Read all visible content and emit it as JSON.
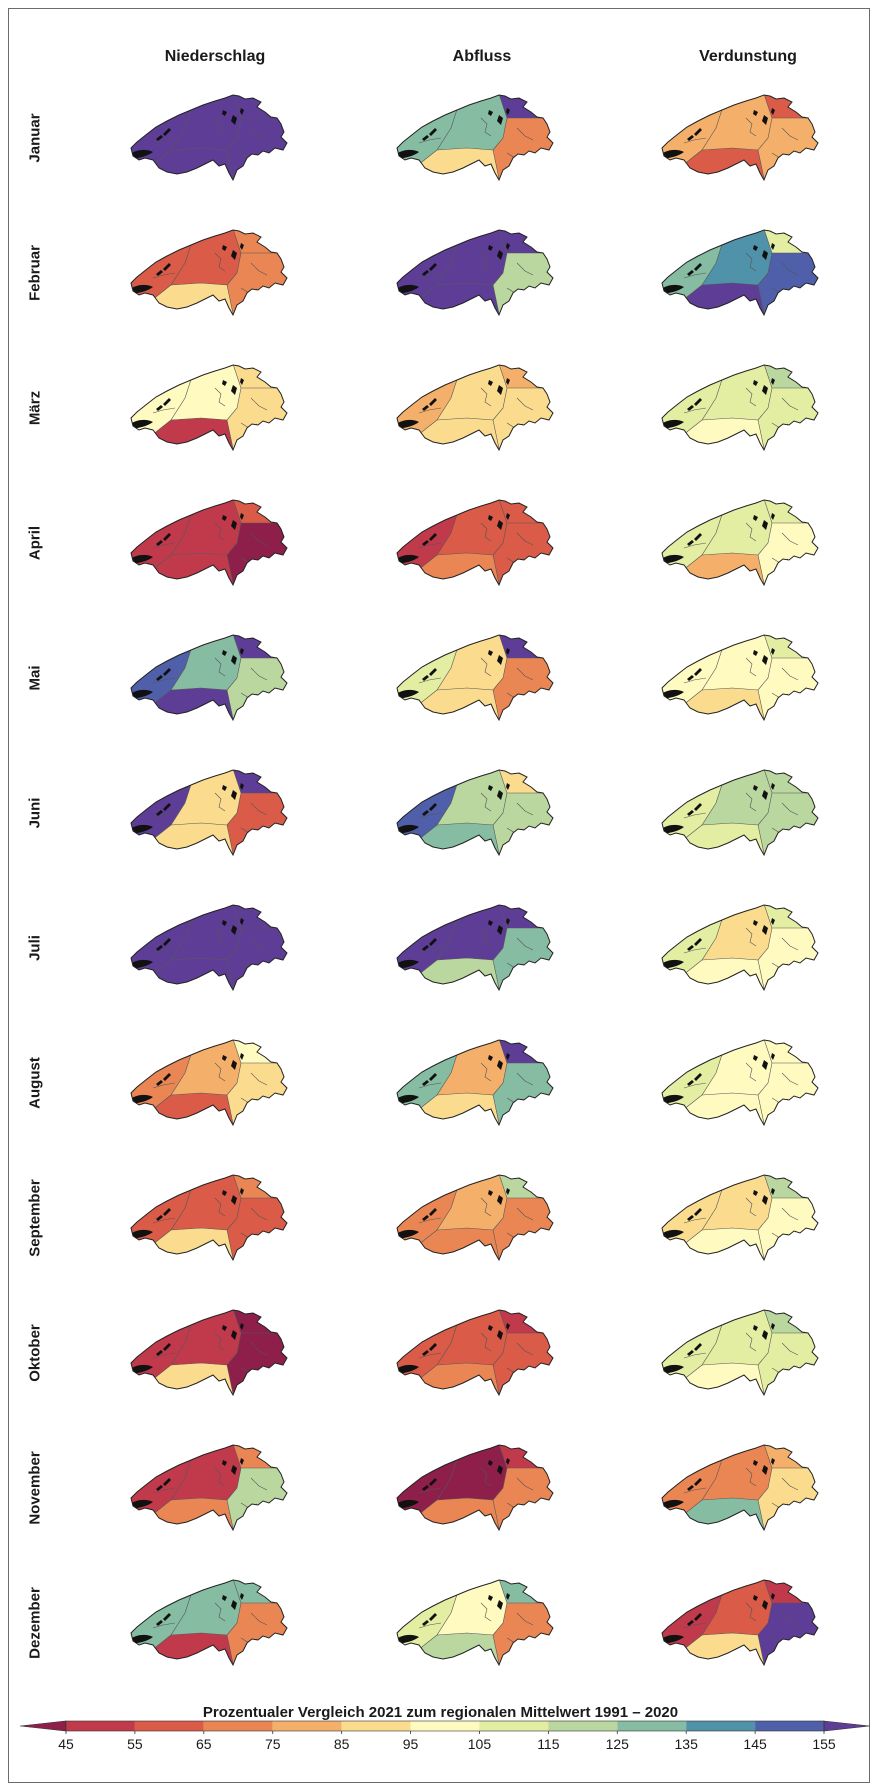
{
  "columns": [
    "Niederschlag",
    "Abfluss",
    "Verdunstung"
  ],
  "months": [
    "Januar",
    "Februar",
    "März",
    "April",
    "Mai",
    "Juni",
    "Juli",
    "August",
    "September",
    "Oktober",
    "November",
    "Dezember"
  ],
  "legend": {
    "title": "Prozentualer Vergleich 2021 zum regionalen Mittelwert 1991 – 2020",
    "ticks": [
      "45",
      "55",
      "65",
      "75",
      "85",
      "95",
      "105",
      "115",
      "125",
      "135",
      "145",
      "155"
    ],
    "colors": [
      "#8e1f4a",
      "#c13a4c",
      "#d95b48",
      "#ea8654",
      "#f4b06a",
      "#fbdc8e",
      "#fefac0",
      "#e3eea2",
      "#b9d79e",
      "#86bca2",
      "#5192ab",
      "#4f5fa9",
      "#5e3d96"
    ]
  },
  "maps": [
    {
      "column": "Niederschlag",
      "month": "Januar",
      "west": "#5e3d96",
      "center": "#5e3d96",
      "northeast": "#5e3d96",
      "east": "#5e3d96",
      "south": "#5e3d96"
    },
    {
      "column": "Abfluss",
      "month": "Januar",
      "west": "#86bca2",
      "center": "#86bca2",
      "northeast": "#5e3d96",
      "east": "#ea8654",
      "south": "#fbdc8e"
    },
    {
      "column": "Verdunstung",
      "month": "Januar",
      "west": "#f4b06a",
      "center": "#f4b06a",
      "northeast": "#d95b48",
      "east": "#f4b06a",
      "south": "#d95b48"
    },
    {
      "column": "Niederschlag",
      "month": "Februar",
      "west": "#d95b48",
      "center": "#d95b48",
      "northeast": "#ea8654",
      "east": "#ea8654",
      "south": "#fbdc8e"
    },
    {
      "column": "Abfluss",
      "month": "Februar",
      "west": "#5e3d96",
      "center": "#5e3d96",
      "northeast": "#5e3d96",
      "east": "#b9d79e",
      "south": "#5e3d96"
    },
    {
      "column": "Verdunstung",
      "month": "Februar",
      "west": "#86bca2",
      "center": "#5192ab",
      "northeast": "#e3eea2",
      "east": "#4f5fa9",
      "south": "#5e3d96"
    },
    {
      "column": "Niederschlag",
      "month": "März",
      "west": "#fefac0",
      "center": "#fefac0",
      "northeast": "#fbdc8e",
      "east": "#fbdc8e",
      "south": "#c13a4c"
    },
    {
      "column": "Abfluss",
      "month": "März",
      "west": "#f4b06a",
      "center": "#fbdc8e",
      "northeast": "#f4b06a",
      "east": "#fbdc8e",
      "south": "#fbdc8e"
    },
    {
      "column": "Verdunstung",
      "month": "März",
      "west": "#e3eea2",
      "center": "#e3eea2",
      "northeast": "#b9d79e",
      "east": "#e3eea2",
      "south": "#fefac0"
    },
    {
      "column": "Niederschlag",
      "month": "April",
      "west": "#c13a4c",
      "center": "#c13a4c",
      "northeast": "#d95b48",
      "east": "#8e1f4a",
      "south": "#c13a4c"
    },
    {
      "column": "Abfluss",
      "month": "April",
      "west": "#c13a4c",
      "center": "#d95b48",
      "northeast": "#d95b48",
      "east": "#d95b48",
      "south": "#ea8654"
    },
    {
      "column": "Verdunstung",
      "month": "April",
      "west": "#e3eea2",
      "center": "#e3eea2",
      "northeast": "#e3eea2",
      "east": "#fefac0",
      "south": "#f4b06a"
    },
    {
      "column": "Niederschlag",
      "month": "Mai",
      "west": "#4f5fa9",
      "center": "#86bca2",
      "northeast": "#5e3d96",
      "east": "#b9d79e",
      "south": "#5e3d96"
    },
    {
      "column": "Abfluss",
      "month": "Mai",
      "west": "#e3eea2",
      "center": "#fbdc8e",
      "northeast": "#5e3d96",
      "east": "#ea8654",
      "south": "#fbdc8e"
    },
    {
      "column": "Verdunstung",
      "month": "Mai",
      "west": "#fefac0",
      "center": "#fefac0",
      "northeast": "#e3eea2",
      "east": "#fefac0",
      "south": "#fbdc8e"
    },
    {
      "column": "Niederschlag",
      "month": "Juni",
      "west": "#5e3d96",
      "center": "#fbdc8e",
      "northeast": "#5e3d96",
      "east": "#d95b48",
      "south": "#fbdc8e"
    },
    {
      "column": "Abfluss",
      "month": "Juni",
      "west": "#4f5fa9",
      "center": "#b9d79e",
      "northeast": "#fbdc8e",
      "east": "#b9d79e",
      "south": "#86bca2"
    },
    {
      "column": "Verdunstung",
      "month": "Juni",
      "west": "#e3eea2",
      "center": "#b9d79e",
      "northeast": "#b9d79e",
      "east": "#b9d79e",
      "south": "#e3eea2"
    },
    {
      "column": "Niederschlag",
      "month": "Juli",
      "west": "#5e3d96",
      "center": "#5e3d96",
      "northeast": "#5e3d96",
      "east": "#5e3d96",
      "south": "#5e3d96"
    },
    {
      "column": "Abfluss",
      "month": "Juli",
      "west": "#5e3d96",
      "center": "#5e3d96",
      "northeast": "#5e3d96",
      "east": "#86bca2",
      "south": "#b9d79e"
    },
    {
      "column": "Verdunstung",
      "month": "Juli",
      "west": "#e3eea2",
      "center": "#fbdc8e",
      "northeast": "#e3eea2",
      "east": "#fefac0",
      "south": "#fefac0"
    },
    {
      "column": "Niederschlag",
      "month": "August",
      "west": "#ea8654",
      "center": "#f4b06a",
      "northeast": "#fefac0",
      "east": "#fbdc8e",
      "south": "#d95b48"
    },
    {
      "column": "Abfluss",
      "month": "August",
      "west": "#86bca2",
      "center": "#f4b06a",
      "northeast": "#5e3d96",
      "east": "#86bca2",
      "south": "#fbdc8e"
    },
    {
      "column": "Verdunstung",
      "month": "August",
      "west": "#e3eea2",
      "center": "#fefac0",
      "northeast": "#fefac0",
      "east": "#fefac0",
      "south": "#fefac0"
    },
    {
      "column": "Niederschlag",
      "month": "September",
      "west": "#d95b48",
      "center": "#d95b48",
      "northeast": "#ea8654",
      "east": "#d95b48",
      "south": "#fbdc8e"
    },
    {
      "column": "Abfluss",
      "month": "September",
      "west": "#ea8654",
      "center": "#f4b06a",
      "northeast": "#b9d79e",
      "east": "#ea8654",
      "south": "#ea8654"
    },
    {
      "column": "Verdunstung",
      "month": "September",
      "west": "#fbdc8e",
      "center": "#fbdc8e",
      "northeast": "#b9d79e",
      "east": "#fefac0",
      "south": "#fefac0"
    },
    {
      "column": "Niederschlag",
      "month": "Oktober",
      "west": "#c13a4c",
      "center": "#c13a4c",
      "northeast": "#8e1f4a",
      "east": "#8e1f4a",
      "south": "#fbdc8e"
    },
    {
      "column": "Abfluss",
      "month": "Oktober",
      "west": "#d95b48",
      "center": "#d95b48",
      "northeast": "#c13a4c",
      "east": "#d95b48",
      "south": "#ea8654"
    },
    {
      "column": "Verdunstung",
      "month": "Oktober",
      "west": "#e3eea2",
      "center": "#e3eea2",
      "northeast": "#b9d79e",
      "east": "#e3eea2",
      "south": "#fefac0"
    },
    {
      "column": "Niederschlag",
      "month": "November",
      "west": "#c13a4c",
      "center": "#c13a4c",
      "northeast": "#ea8654",
      "east": "#b9d79e",
      "south": "#ea8654"
    },
    {
      "column": "Abfluss",
      "month": "November",
      "west": "#8e1f4a",
      "center": "#8e1f4a",
      "northeast": "#c13a4c",
      "east": "#ea8654",
      "south": "#ea8654"
    },
    {
      "column": "Verdunstung",
      "month": "November",
      "west": "#ea8654",
      "center": "#ea8654",
      "northeast": "#f4b06a",
      "east": "#fbdc8e",
      "south": "#86bca2"
    },
    {
      "column": "Niederschlag",
      "month": "Dezember",
      "west": "#86bca2",
      "center": "#86bca2",
      "northeast": "#86bca2",
      "east": "#ea8654",
      "south": "#c13a4c"
    },
    {
      "column": "Abfluss",
      "month": "Dezember",
      "west": "#e3eea2",
      "center": "#fefac0",
      "northeast": "#86bca2",
      "east": "#ea8654",
      "south": "#b9d79e"
    },
    {
      "column": "Verdunstung",
      "month": "Dezember",
      "west": "#c13a4c",
      "center": "#d95b48",
      "northeast": "#c13a4c",
      "east": "#5e3d96",
      "south": "#fbdc8e"
    }
  ]
}
